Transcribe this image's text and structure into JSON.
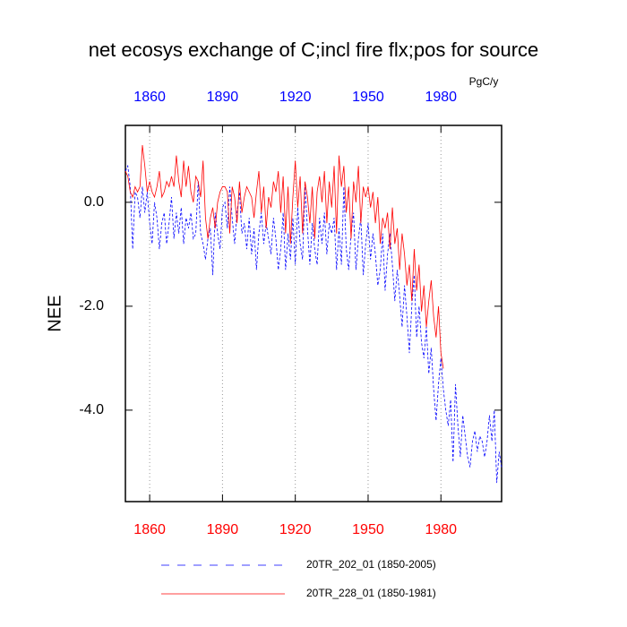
{
  "chart_data": {
    "type": "line",
    "title": "net ecosys exchange of C;incl fire flx;pos for source",
    "units": "PgC/y",
    "y_label": "NEE",
    "x": [
      1850,
      1851,
      1852,
      1853,
      1854,
      1855,
      1856,
      1857,
      1858,
      1859,
      1860,
      1861,
      1862,
      1863,
      1864,
      1865,
      1866,
      1867,
      1868,
      1869,
      1870,
      1871,
      1872,
      1873,
      1874,
      1875,
      1876,
      1877,
      1878,
      1879,
      1880,
      1881,
      1882,
      1883,
      1884,
      1885,
      1886,
      1887,
      1888,
      1889,
      1890,
      1891,
      1892,
      1893,
      1894,
      1895,
      1896,
      1897,
      1898,
      1899,
      1900,
      1901,
      1902,
      1903,
      1904,
      1905,
      1906,
      1907,
      1908,
      1909,
      1910,
      1911,
      1912,
      1913,
      1914,
      1915,
      1916,
      1917,
      1918,
      1919,
      1920,
      1921,
      1922,
      1923,
      1924,
      1925,
      1926,
      1927,
      1928,
      1929,
      1930,
      1931,
      1932,
      1933,
      1934,
      1935,
      1936,
      1937,
      1938,
      1939,
      1940,
      1941,
      1942,
      1943,
      1944,
      1945,
      1946,
      1947,
      1948,
      1949,
      1950,
      1951,
      1952,
      1953,
      1954,
      1955,
      1956,
      1957,
      1958,
      1959,
      1960,
      1961,
      1962,
      1963,
      1964,
      1965,
      1966,
      1967,
      1968,
      1969,
      1970,
      1971,
      1972,
      1973,
      1974,
      1975,
      1976,
      1977,
      1978,
      1979,
      1980,
      1981,
      1982,
      1983,
      1984,
      1985,
      1986,
      1987,
      1988,
      1989,
      1990,
      1991,
      1992,
      1993,
      1994,
      1995,
      1996,
      1997,
      1998,
      1999,
      2000,
      2001,
      2002,
      2003,
      2004,
      2005
    ],
    "series": [
      {
        "name": "20TR_202_01 (1850-2005)",
        "color": "#0000ff",
        "style": "dashed",
        "values": [
          0.6,
          0.7,
          0.3,
          -0.9,
          0.2,
          0.1,
          -0.3,
          0.3,
          -0.2,
          0.2,
          -0.4,
          -0.8,
          0.0,
          -0.3,
          -0.9,
          -0.4,
          -0.2,
          -0.8,
          -0.4,
          0.1,
          -0.7,
          -0.2,
          -0.6,
          -0.1,
          -0.8,
          -0.3,
          -0.5,
          -0.2,
          -0.7,
          -0.6,
          0.4,
          -0.6,
          -0.8,
          -1.1,
          -0.7,
          -0.5,
          -1.4,
          -0.2,
          -0.6,
          -0.9,
          -0.1,
          0.0,
          -0.5,
          0.3,
          -0.3,
          -0.8,
          -0.2,
          0.2,
          -0.6,
          -0.4,
          -0.9,
          -0.3,
          -1.0,
          -0.5,
          -1.3,
          -0.6,
          -0.2,
          -0.8,
          -0.4,
          -0.7,
          -1.0,
          -0.3,
          -0.7,
          -1.3,
          -0.9,
          -0.2,
          -1.3,
          -0.6,
          -1.1,
          -0.3,
          -1.2,
          -0.1,
          -0.8,
          -1.1,
          0.3,
          -0.5,
          -1.2,
          -0.4,
          -0.9,
          -1.2,
          -0.3,
          -0.8,
          -0.2,
          -1.0,
          -0.4,
          -0.6,
          -0.3,
          -1.3,
          -0.5,
          -1.2,
          0.3,
          -0.9,
          -1.3,
          -0.6,
          -0.2,
          -1.3,
          -0.7,
          -0.3,
          -1.4,
          -0.8,
          -0.4,
          -1.1,
          -0.6,
          -1.0,
          -1.6,
          -1.3,
          -0.6,
          -1.7,
          -1.0,
          -0.6,
          -1.2,
          -1.9,
          -1.3,
          -1.8,
          -2.4,
          -1.6,
          -2.2,
          -2.9,
          -2.0,
          -1.4,
          -2.6,
          -2.0,
          -2.7,
          -3.0,
          -2.4,
          -3.3,
          -2.8,
          -3.6,
          -4.2,
          -3.5,
          -3.0,
          -3.6,
          -4.0,
          -4.3,
          -3.8,
          -5.0,
          -3.5,
          -4.3,
          -4.9,
          -4.1,
          -4.5,
          -4.9,
          -5.1,
          -4.6,
          -4.4,
          -4.8,
          -4.5,
          -4.6,
          -4.9,
          -4.6,
          -4.1,
          -4.6,
          -4.0,
          -5.4,
          -4.8,
          -5.1
        ]
      },
      {
        "name": "20TR_228_01 (1850-1981)",
        "color": "#ff0000",
        "style": "solid",
        "values": [
          0.6,
          0.5,
          0.2,
          0.1,
          0.3,
          0.2,
          0.3,
          1.1,
          0.7,
          0.2,
          0.4,
          0.2,
          0.1,
          0.3,
          0.6,
          0.1,
          0.2,
          0.4,
          0.3,
          0.5,
          0.3,
          0.9,
          0.4,
          0.1,
          0.8,
          0.3,
          0.7,
          0.2,
          0.0,
          0.5,
          0.4,
          0.1,
          0.8,
          -0.3,
          -0.7,
          -0.3,
          -0.1,
          -0.5,
          0.0,
          0.2,
          0.3,
          0.3,
          0.2,
          -0.6,
          0.3,
          0.1,
          -0.4,
          0.4,
          -0.2,
          0.1,
          0.3,
          0.2,
          0.1,
          -0.3,
          0.2,
          0.6,
          -0.2,
          0.3,
          -0.5,
          0.1,
          -0.1,
          0.4,
          0.2,
          0.6,
          -0.2,
          0.5,
          -0.6,
          0.3,
          -0.8,
          0.1,
          0.8,
          -0.1,
          0.5,
          -0.6,
          0.4,
          0.1,
          -0.4,
          0.3,
          -0.7,
          0.2,
          0.5,
          0.0,
          0.6,
          -0.4,
          0.4,
          -0.1,
          0.7,
          -0.6,
          0.9,
          0.3,
          0.7,
          -0.2,
          0.3,
          -0.7,
          0.4,
          0.0,
          0.7,
          -0.4,
          0.3,
          0.1,
          0.3,
          -0.1,
          0.2,
          -0.4,
          0.1,
          -0.8,
          -0.3,
          -0.5,
          -0.2,
          -0.9,
          -0.1,
          -0.8,
          -0.5,
          -1.3,
          -0.6,
          -1.0,
          -1.6,
          -1.2,
          -1.9,
          -0.9,
          -1.7,
          -1.2,
          -2.1,
          -1.6,
          -2.4,
          -1.9,
          -1.5,
          -2.2,
          -2.6,
          -2.0,
          -2.9,
          -3.2,
          null,
          null,
          null,
          null,
          null,
          null,
          null,
          null,
          null,
          null,
          null,
          null,
          null,
          null,
          null,
          null,
          null,
          null,
          null,
          null,
          null,
          null,
          null,
          null
        ]
      }
    ],
    "xlim": [
      1850,
      2005
    ],
    "ylim": [
      -5.76,
      1.48
    ],
    "xticks": [
      1860,
      1890,
      1920,
      1950,
      1980
    ],
    "yticks": [
      {
        "value": -4,
        "label": "-4.0"
      },
      {
        "value": -2,
        "label": "-2.0"
      },
      {
        "value": 0,
        "label": "0.0"
      }
    ],
    "top_tick_color": "#0000ff",
    "bottom_tick_color": "#ff0000",
    "grid": true
  }
}
